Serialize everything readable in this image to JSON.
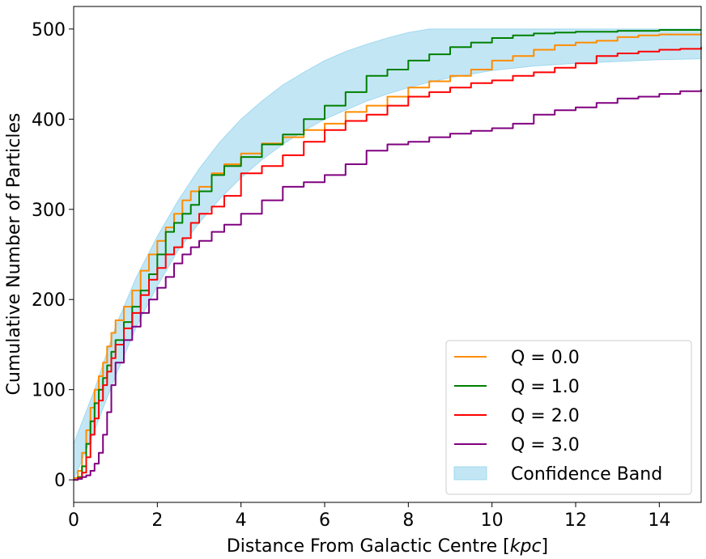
{
  "chart_data": {
    "type": "line",
    "xlabel_prefix": "Distance From Galactic Centre [",
    "xlabel_unit": "kpc",
    "xlabel_suffix": "]",
    "ylabel": "Cumulative Number of Particles",
    "xlim": [
      0,
      15
    ],
    "ylim": [
      -25,
      525
    ],
    "x_ticks": [
      0,
      2,
      4,
      6,
      8,
      10,
      12,
      14
    ],
    "x_tick_labels": [
      "0",
      "2",
      "4",
      "6",
      "8",
      "10",
      "12",
      "14"
    ],
    "y_ticks": [
      0,
      100,
      200,
      300,
      400,
      500
    ],
    "y_tick_labels": [
      "0",
      "100",
      "200",
      "300",
      "400",
      "500"
    ],
    "grid": false,
    "legend_position": "bottom-right",
    "series": [
      {
        "name": "Q = 0.0",
        "color": "#ff8c00",
        "points": [
          [
            0,
            2
          ],
          [
            0.1,
            10
          ],
          [
            0.2,
            30
          ],
          [
            0.3,
            55
          ],
          [
            0.4,
            80
          ],
          [
            0.5,
            100
          ],
          [
            0.6,
            115
          ],
          [
            0.7,
            130
          ],
          [
            0.8,
            148
          ],
          [
            0.9,
            163
          ],
          [
            1.0,
            177
          ],
          [
            1.2,
            192
          ],
          [
            1.4,
            210
          ],
          [
            1.6,
            232
          ],
          [
            1.8,
            250
          ],
          [
            2.0,
            265
          ],
          [
            2.2,
            280
          ],
          [
            2.4,
            295
          ],
          [
            2.6,
            310
          ],
          [
            2.8,
            320
          ],
          [
            3.0,
            325
          ],
          [
            3.3,
            340
          ],
          [
            3.6,
            350
          ],
          [
            4.0,
            362
          ],
          [
            4.5,
            373
          ],
          [
            5.0,
            380
          ],
          [
            5.5,
            388
          ],
          [
            6.0,
            395
          ],
          [
            6.5,
            408
          ],
          [
            7.0,
            415
          ],
          [
            7.5,
            425
          ],
          [
            8.0,
            435
          ],
          [
            8.5,
            442
          ],
          [
            9.0,
            448
          ],
          [
            9.5,
            455
          ],
          [
            10.0,
            465
          ],
          [
            10.5,
            470
          ],
          [
            11.0,
            477
          ],
          [
            11.5,
            482
          ],
          [
            12.0,
            485
          ],
          [
            12.5,
            487
          ],
          [
            13.0,
            491
          ],
          [
            13.5,
            493
          ],
          [
            14.0,
            494
          ],
          [
            14.5,
            494
          ],
          [
            15.0,
            494
          ]
        ]
      },
      {
        "name": "Q = 1.0",
        "color": "#008000",
        "points": [
          [
            0,
            0
          ],
          [
            0.1,
            3
          ],
          [
            0.2,
            15
          ],
          [
            0.3,
            40
          ],
          [
            0.4,
            65
          ],
          [
            0.5,
            85
          ],
          [
            0.6,
            100
          ],
          [
            0.7,
            113
          ],
          [
            0.8,
            127
          ],
          [
            0.9,
            142
          ],
          [
            1.0,
            155
          ],
          [
            1.2,
            175
          ],
          [
            1.4,
            192
          ],
          [
            1.6,
            210
          ],
          [
            1.8,
            228
          ],
          [
            2.0,
            250
          ],
          [
            2.2,
            275
          ],
          [
            2.4,
            285
          ],
          [
            2.6,
            295
          ],
          [
            2.8,
            305
          ],
          [
            3.0,
            320
          ],
          [
            3.3,
            338
          ],
          [
            3.6,
            348
          ],
          [
            4.0,
            358
          ],
          [
            4.5,
            372
          ],
          [
            5.0,
            383
          ],
          [
            5.5,
            400
          ],
          [
            6.0,
            415
          ],
          [
            6.5,
            430
          ],
          [
            7.0,
            448
          ],
          [
            7.5,
            455
          ],
          [
            8.0,
            465
          ],
          [
            8.5,
            472
          ],
          [
            9.0,
            480
          ],
          [
            9.5,
            485
          ],
          [
            10.0,
            490
          ],
          [
            10.5,
            493
          ],
          [
            11.0,
            495
          ],
          [
            11.5,
            496
          ],
          [
            12.0,
            497
          ],
          [
            12.5,
            497
          ],
          [
            13.0,
            498
          ],
          [
            13.5,
            498
          ],
          [
            14.0,
            499
          ],
          [
            14.5,
            499
          ],
          [
            15.0,
            499
          ]
        ]
      },
      {
        "name": "Q = 2.0",
        "color": "#ff0000",
        "points": [
          [
            0,
            0
          ],
          [
            0.1,
            2
          ],
          [
            0.2,
            8
          ],
          [
            0.3,
            25
          ],
          [
            0.4,
            50
          ],
          [
            0.5,
            68
          ],
          [
            0.6,
            88
          ],
          [
            0.7,
            105
          ],
          [
            0.8,
            120
          ],
          [
            0.9,
            135
          ],
          [
            1.0,
            150
          ],
          [
            1.2,
            168
          ],
          [
            1.4,
            185
          ],
          [
            1.6,
            205
          ],
          [
            1.8,
            222
          ],
          [
            2.0,
            235
          ],
          [
            2.2,
            250
          ],
          [
            2.4,
            258
          ],
          [
            2.6,
            268
          ],
          [
            2.8,
            285
          ],
          [
            3.0,
            295
          ],
          [
            3.3,
            303
          ],
          [
            3.6,
            315
          ],
          [
            4.0,
            340
          ],
          [
            4.5,
            348
          ],
          [
            5.0,
            360
          ],
          [
            5.5,
            375
          ],
          [
            6.0,
            388
          ],
          [
            6.5,
            398
          ],
          [
            7.0,
            405
          ],
          [
            7.5,
            415
          ],
          [
            8.0,
            425
          ],
          [
            8.5,
            430
          ],
          [
            9.0,
            435
          ],
          [
            9.5,
            440
          ],
          [
            10.0,
            443
          ],
          [
            10.5,
            448
          ],
          [
            11.0,
            452
          ],
          [
            11.5,
            457
          ],
          [
            12.0,
            462
          ],
          [
            12.5,
            470
          ],
          [
            13.0,
            473
          ],
          [
            13.5,
            475
          ],
          [
            14.0,
            477
          ],
          [
            14.5,
            478
          ],
          [
            15.0,
            480
          ]
        ]
      },
      {
        "name": "Q = 3.0",
        "color": "#800080",
        "points": [
          [
            0,
            0
          ],
          [
            0.1,
            1
          ],
          [
            0.2,
            3
          ],
          [
            0.3,
            5
          ],
          [
            0.4,
            10
          ],
          [
            0.5,
            18
          ],
          [
            0.6,
            30
          ],
          [
            0.7,
            50
          ],
          [
            0.8,
            75
          ],
          [
            0.9,
            105
          ],
          [
            1.0,
            130
          ],
          [
            1.2,
            155
          ],
          [
            1.4,
            170
          ],
          [
            1.6,
            185
          ],
          [
            1.8,
            200
          ],
          [
            2.0,
            213
          ],
          [
            2.2,
            225
          ],
          [
            2.4,
            240
          ],
          [
            2.6,
            250
          ],
          [
            2.8,
            258
          ],
          [
            3.0,
            265
          ],
          [
            3.3,
            275
          ],
          [
            3.6,
            283
          ],
          [
            4.0,
            295
          ],
          [
            4.5,
            310
          ],
          [
            5.0,
            325
          ],
          [
            5.5,
            330
          ],
          [
            6.0,
            338
          ],
          [
            6.5,
            350
          ],
          [
            7.0,
            365
          ],
          [
            7.5,
            372
          ],
          [
            8.0,
            375
          ],
          [
            8.5,
            380
          ],
          [
            9.0,
            384
          ],
          [
            9.5,
            387
          ],
          [
            10.0,
            390
          ],
          [
            10.5,
            395
          ],
          [
            11.0,
            405
          ],
          [
            11.5,
            410
          ],
          [
            12.0,
            413
          ],
          [
            12.5,
            418
          ],
          [
            13.0,
            423
          ],
          [
            13.5,
            425
          ],
          [
            14.0,
            428
          ],
          [
            14.5,
            431
          ],
          [
            15.0,
            433
          ]
        ]
      }
    ],
    "band": {
      "name": "Confidence Band",
      "color": "#87ceeb",
      "upper": [
        [
          0,
          40
        ],
        [
          0.5,
          100
        ],
        [
          1.0,
          170
        ],
        [
          1.5,
          225
        ],
        [
          2.0,
          270
        ],
        [
          2.5,
          310
        ],
        [
          3.0,
          345
        ],
        [
          3.5,
          375
        ],
        [
          4.0,
          400
        ],
        [
          4.5,
          420
        ],
        [
          5.0,
          438
        ],
        [
          5.5,
          452
        ],
        [
          6.0,
          465
        ],
        [
          6.5,
          475
        ],
        [
          7.0,
          483
        ],
        [
          7.5,
          490
        ],
        [
          8.0,
          496
        ],
        [
          8.5,
          500
        ],
        [
          9.0,
          500
        ],
        [
          9.5,
          500
        ],
        [
          10.0,
          500
        ],
        [
          11.0,
          500
        ],
        [
          12.0,
          500
        ],
        [
          13.0,
          500
        ],
        [
          14.0,
          500
        ],
        [
          15.0,
          500
        ]
      ],
      "lower": [
        [
          0,
          0
        ],
        [
          0.5,
          55
        ],
        [
          1.0,
          115
        ],
        [
          1.5,
          170
        ],
        [
          2.0,
          215
        ],
        [
          2.5,
          255
        ],
        [
          3.0,
          285
        ],
        [
          3.5,
          312
        ],
        [
          4.0,
          335
        ],
        [
          4.5,
          355
        ],
        [
          5.0,
          372
        ],
        [
          5.5,
          387
        ],
        [
          6.0,
          400
        ],
        [
          6.5,
          410
        ],
        [
          7.0,
          420
        ],
        [
          7.5,
          428
        ],
        [
          8.0,
          435
        ],
        [
          8.5,
          441
        ],
        [
          9.0,
          446
        ],
        [
          9.5,
          450
        ],
        [
          10.0,
          454
        ],
        [
          11.0,
          459
        ],
        [
          12.0,
          462
        ],
        [
          13.0,
          464
        ],
        [
          14.0,
          466
        ],
        [
          15.0,
          467
        ]
      ]
    }
  }
}
